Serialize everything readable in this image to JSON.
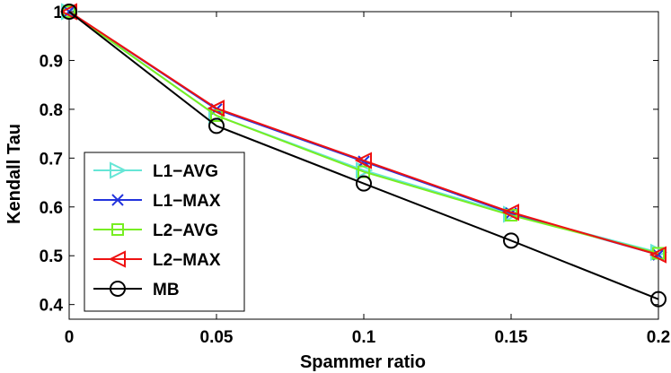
{
  "chart_data": {
    "type": "line",
    "title": "",
    "xlabel": "Spammer ratio",
    "ylabel": "Kendall Tau",
    "xlim": [
      0,
      0.2
    ],
    "ylim": [
      0.37,
      1.0
    ],
    "xticks": [
      0,
      0.05,
      0.1,
      0.15,
      0.2
    ],
    "xtick_labels": [
      "0",
      "0.05",
      "0.1",
      "0.15",
      "0.2"
    ],
    "yticks": [
      0.4,
      0.5,
      0.6,
      0.7,
      0.8,
      0.9,
      1.0
    ],
    "ytick_labels": [
      "0.4",
      "0.5",
      "0.6",
      "0.7",
      "0.8",
      "0.9",
      "1"
    ],
    "grid": false,
    "legend_position": "lower-left",
    "x": [
      0,
      0.05,
      0.1,
      0.15,
      0.2
    ],
    "series": [
      {
        "name": "L1−AVG",
        "values": [
          1.0,
          0.787,
          0.675,
          0.585,
          0.507
        ],
        "color": "#66e6d6",
        "marker": "triangle-right"
      },
      {
        "name": "L1−MAX",
        "values": [
          1.0,
          0.8,
          0.693,
          0.587,
          0.502
        ],
        "color": "#2233dd",
        "marker": "x"
      },
      {
        "name": "L2−AVG",
        "values": [
          1.0,
          0.787,
          0.672,
          0.583,
          0.505
        ],
        "color": "#77ee22",
        "marker": "square"
      },
      {
        "name": "L2−MAX",
        "values": [
          1.0,
          0.802,
          0.695,
          0.589,
          0.502
        ],
        "color": "#ee1111",
        "marker": "triangle-left"
      },
      {
        "name": "MB",
        "values": [
          1.0,
          0.766,
          0.648,
          0.531,
          0.411
        ],
        "color": "#000000",
        "marker": "circle"
      }
    ]
  }
}
